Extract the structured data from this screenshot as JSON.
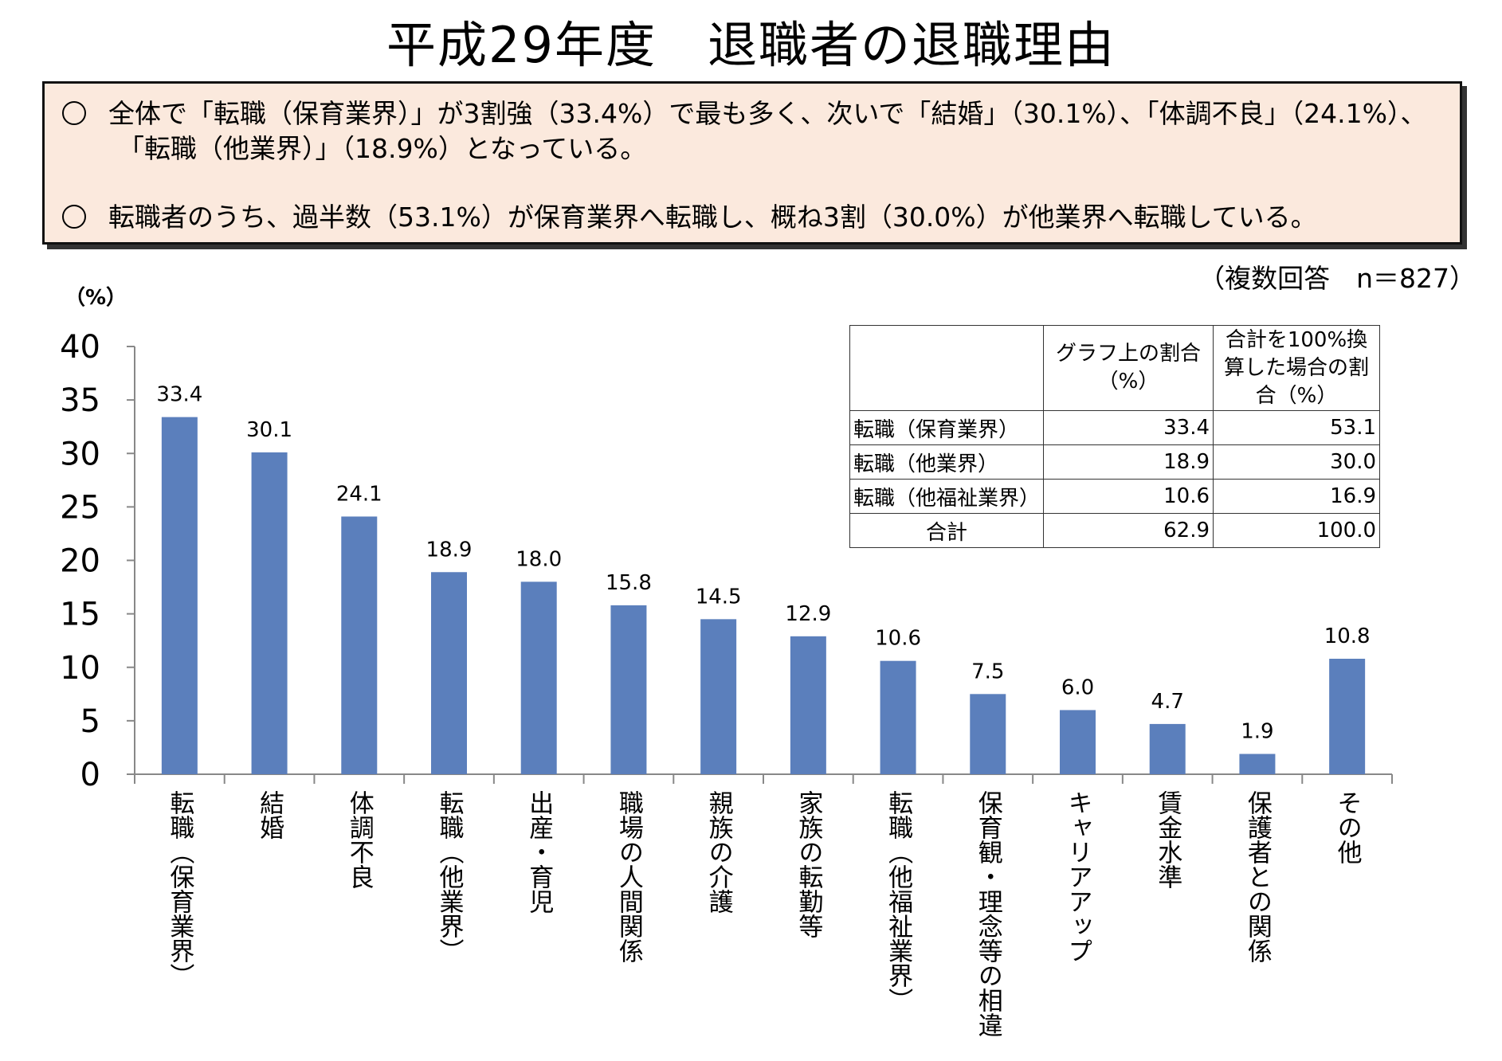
{
  "title": "平成29年度　退職者の退職理由",
  "summary": [
    "全体で「転職（保育業界）」が3割強（33.4%）で最も多く、次いで「結婚」（30.1%）、「体調不良」（24.1%）、",
    "「転職（他業界）」（18.9%）となっている。",
    "転職者のうち、過半数（53.1%）が保育業界へ転職し、概ね3割（30.0%）が他業界へ転職している。"
  ],
  "note": "（複数回答　n＝827）",
  "table": {
    "header": [
      "",
      "グラフ上の割合（%）",
      "合計を100%換算した場合の割合（%）"
    ],
    "rows": [
      [
        "転職（保育業界）",
        "33.4",
        "53.1"
      ],
      [
        "転職（他業界）",
        "18.9",
        "30.0"
      ],
      [
        "転職（他福祉業界）",
        "10.6",
        "16.9"
      ],
      [
        "合計",
        "62.9",
        "100.0"
      ]
    ]
  },
  "chart_data": {
    "type": "bar",
    "ylabel": "（%）",
    "ylim": [
      0,
      40
    ],
    "yticks": [
      0,
      5,
      10,
      15,
      20,
      25,
      30,
      35,
      40
    ],
    "categories": [
      "転職（保育業界）",
      "結婚",
      "体調不良",
      "転職（他業界）",
      "出産・育児",
      "職場の人間関係",
      "親族の介護",
      "家族の転勤等",
      "転職（他福祉業界）",
      "保育観・理念等の相違",
      "キャリアアップ",
      "賃金水準",
      "保護者との関係",
      "その他"
    ],
    "values": [
      33.4,
      30.1,
      24.1,
      18.9,
      18.0,
      15.8,
      14.5,
      12.9,
      10.6,
      7.5,
      6.0,
      4.7,
      1.9,
      10.8
    ],
    "value_labels": [
      "33.4",
      "30.1",
      "24.1",
      "18.9",
      "18.0",
      "15.8",
      "14.5",
      "12.9",
      "10.6",
      "7.5",
      "6.0",
      "4.7",
      "1.9",
      "10.8"
    ],
    "bar_color": "#5b7fbc",
    "grid": false,
    "legend": "none"
  }
}
